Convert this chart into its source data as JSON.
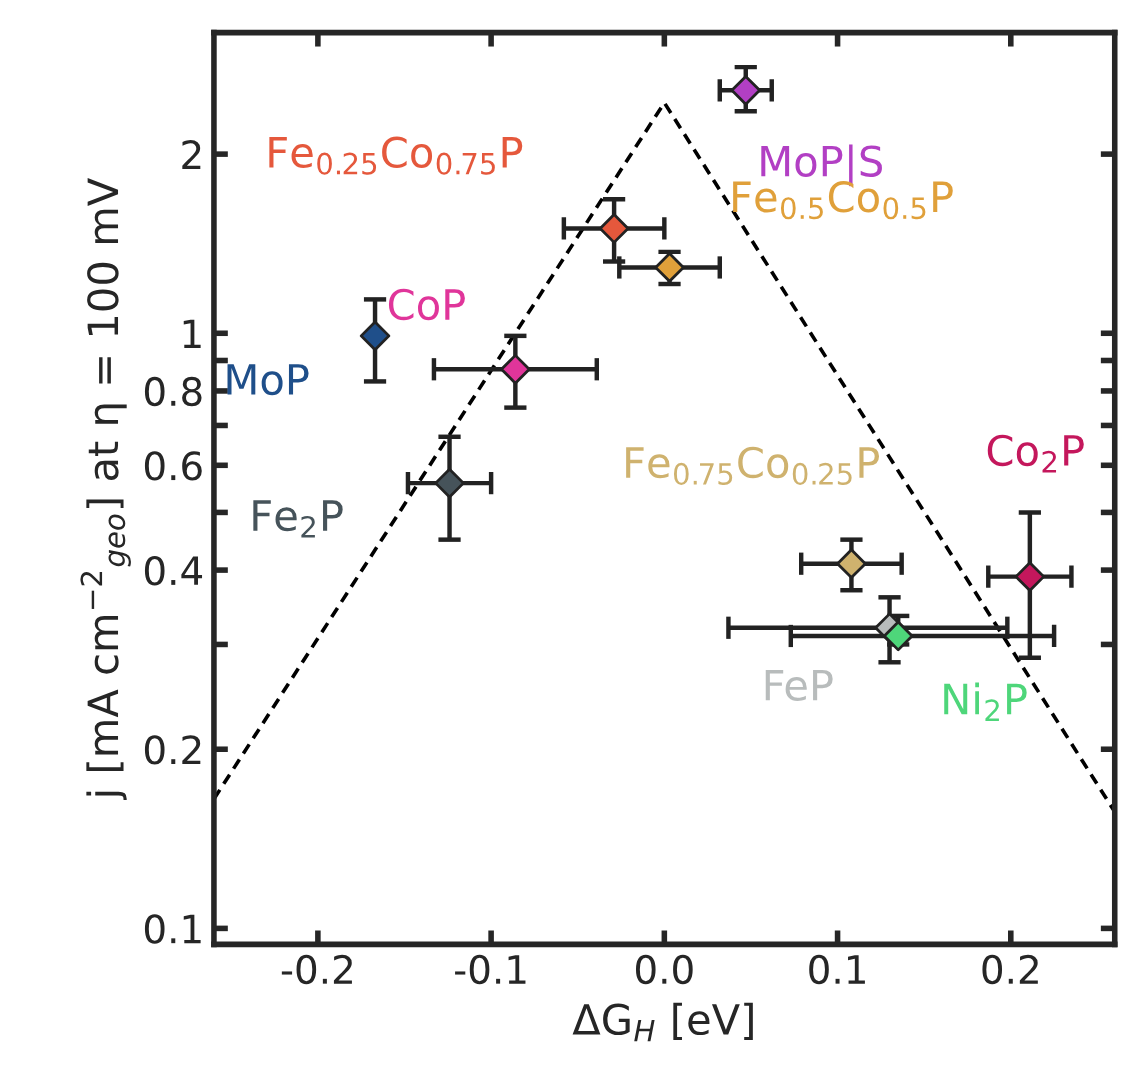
{
  "chart_data": {
    "type": "scatter",
    "xlabel": "ΔG$_{H}$ [eV]",
    "ylabel": "j [mA cm$^{−2}$$_{geo}$] at η = 100 mV",
    "log": "y",
    "xlim": [
      -0.26,
      0.26
    ],
    "ylim": [
      0.094,
      3.2
    ],
    "xticks": [
      {
        "value": -0.2,
        "label": "-0.2"
      },
      {
        "value": -0.1,
        "label": "-0.1"
      },
      {
        "value": 0.0,
        "label": "0.0"
      },
      {
        "value": 0.1,
        "label": "0.1"
      },
      {
        "value": 0.2,
        "label": "0.2"
      }
    ],
    "yticks": [
      0.1,
      0.2,
      {
        "value": 0.3,
        "label": null
      },
      0.4,
      {
        "value": 0.5,
        "label": null
      },
      0.6,
      {
        "value": 0.7,
        "label": null
      },
      0.8,
      {
        "value": 0.9,
        "label": null
      },
      1,
      2
    ],
    "grid": false,
    "marker": "diamond",
    "series": [
      {
        "type": "line",
        "color": "#000000",
        "line_style": "dashed",
        "marker": "none",
        "x": [
          -0.26,
          0.0,
          0.26
        ],
        "values": [
          0.165,
          2.44,
          0.157
        ]
      },
      {
        "name": "MoP|S",
        "color": "#b23fc4",
        "x": [
          0.047
        ],
        "values": [
          2.56
        ],
        "xerrors": [
          0.015
        ],
        "errors": [
          [
            2.36,
            2.8
          ]
        ]
      },
      {
        "name": "Fe$_{0.25}$Co$_{0.75}$P",
        "color": "#e5583c",
        "x": [
          -0.029
        ],
        "values": [
          1.5
        ],
        "xerrors": [
          0.029
        ],
        "errors": [
          [
            1.32,
            1.68
          ]
        ]
      },
      {
        "name": "Fe$_{0.5}$Co$_{0.5}$P",
        "color": "#e0a03a",
        "x": [
          0.003
        ],
        "values": [
          1.29
        ],
        "xerrors": [
          0.029
        ],
        "errors": [
          [
            1.21,
            1.37
          ]
        ]
      },
      {
        "name": "MoP",
        "color": "#1f4f8a",
        "x": [
          -0.167
        ],
        "values": [
          0.99
        ],
        "errors": [
          [
            0.83,
            1.14
          ]
        ]
      },
      {
        "name": "CoP",
        "color": "#e0359a",
        "x": [
          -0.086
        ],
        "values": [
          0.87
        ],
        "xerrors": [
          0.047
        ],
        "errors": [
          [
            0.75,
            0.99
          ]
        ]
      },
      {
        "name": "Fe$_{2}$P",
        "color": "#46535a",
        "x": [
          -0.124
        ],
        "values": [
          0.56
        ],
        "xerrors": [
          0.024
        ],
        "errors": [
          [
            0.45,
            0.67
          ]
        ]
      },
      {
        "name": "Fe$_{0.75}$Co$_{0.25}$P",
        "color": "#cfb26e",
        "x": [
          0.108
        ],
        "values": [
          0.41
        ],
        "xerrors": [
          0.029
        ],
        "errors": [
          [
            0.37,
            0.45
          ]
        ]
      },
      {
        "name": "FeP",
        "color": "#b8bcbc",
        "x": [
          0.13
        ],
        "values": [
          0.32
        ],
        "xerrors": [
          [
            0.037,
            0.198
          ]
        ],
        "errors": [
          [
            0.28,
            0.36
          ]
        ]
      },
      {
        "name": "Ni$_{2}$P",
        "color": "#4ed67a",
        "x": [
          0.135
        ],
        "values": [
          0.31
        ],
        "xerrors": [
          [
            0.073,
            0.225
          ]
        ],
        "errors": [
          [
            0.3,
            0.335
          ]
        ]
      },
      {
        "name": "Co$_{2}$P",
        "color": "#c4175c",
        "x": [
          0.211
        ],
        "values": [
          0.39
        ],
        "xerrors": [
          0.024
        ],
        "errors": [
          [
            0.285,
            0.5
          ]
        ]
      }
    ]
  }
}
